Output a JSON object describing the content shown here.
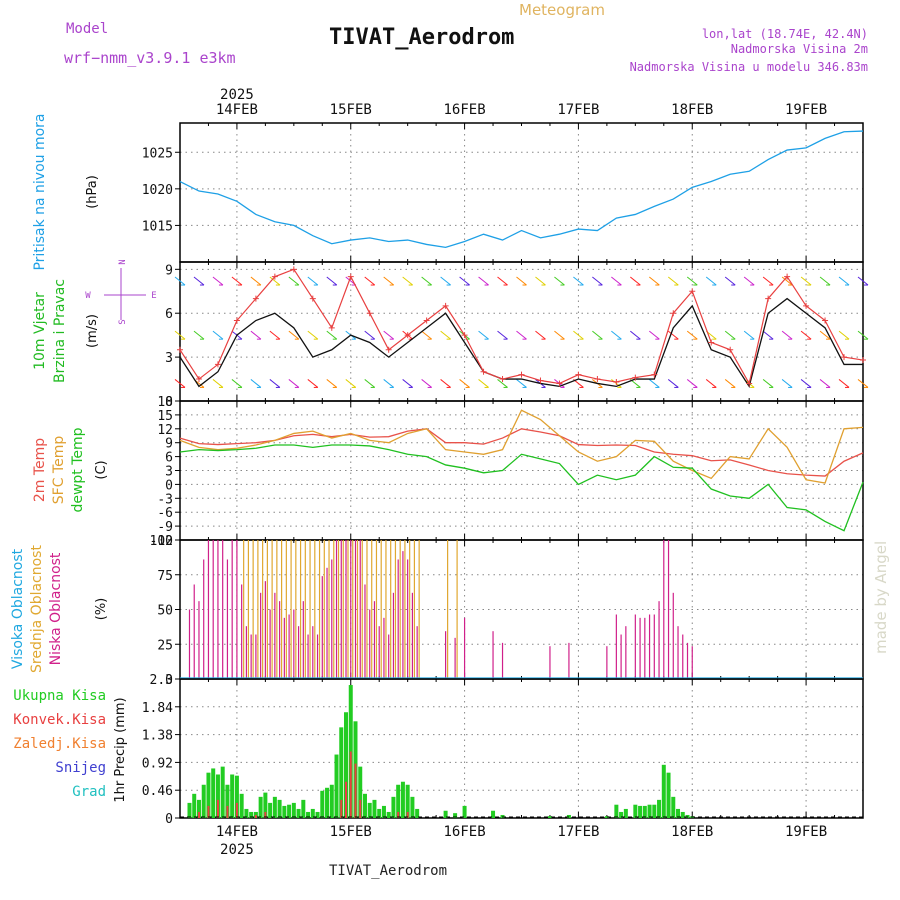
{
  "header": {
    "meteogram_label": "Meteogram",
    "title": "TIVAT_Aerodrom",
    "model_label": "Model",
    "model_value": "wrf−nmm_v3.9.1 e3km",
    "location_line": "lon,lat (18.74E, 42.4N)",
    "elevation_line": "Nadmorska Visina 2m",
    "model_elevation_line": "Nadmorska Visina u modelu 346.83m",
    "footer_title": "TIVAT_Aerodrom",
    "watermark": "made by Angel"
  },
  "colors": {
    "pressure": "#1ea0e6",
    "wind_text": "#22bb22",
    "temp2m": "#e8524a",
    "sfc_temp": "#e0a030",
    "dewpt": "#20c020",
    "high_cloud": "#20a8e0",
    "mid_cloud": "#e0a830",
    "low_cloud": "#d0208a",
    "precip_total": "#22cc22",
    "precip_conv": "#e84040",
    "precip_frozen": "#f08030",
    "snow": "#4040d0",
    "graupel": "#20c0c0",
    "purple": "#aa44cc"
  },
  "chart_data": {
    "type": "line",
    "time_axis": {
      "year_label": "2025",
      "day_labels": [
        "14FEB",
        "15FEB",
        "16FEB",
        "17FEB",
        "18FEB",
        "19FEB"
      ],
      "range_hours": [
        -12,
        132
      ]
    },
    "panels": [
      {
        "id": "pressure",
        "ylabel_main": "Pritisak na nivou mora",
        "unit": "(hPa)",
        "yticks": [
          1015,
          1020,
          1025
        ],
        "ylim": [
          1010,
          1029
        ],
        "series": [
          {
            "name": "MSLP",
            "x": [
              -12,
              -8,
              -4,
              0,
              4,
              8,
              12,
              16,
              20,
              24,
              28,
              32,
              36,
              40,
              44,
              48,
              52,
              56,
              60,
              64,
              68,
              72,
              76,
              80,
              84,
              88,
              92,
              96,
              100,
              104,
              108,
              112,
              116,
              120,
              124,
              128,
              132
            ],
            "values": [
              1021,
              1019.7,
              1019.3,
              1018.3,
              1016.5,
              1015.5,
              1015,
              1013.6,
              1012.5,
              1013,
              1013.3,
              1012.8,
              1013,
              1012.4,
              1012,
              1012.8,
              1013.8,
              1013,
              1014.3,
              1013.3,
              1013.8,
              1014.5,
              1014.3,
              1016,
              1016.5,
              1017.6,
              1018.6,
              1020.2,
              1021,
              1022,
              1022.4,
              1024,
              1025.3,
              1025.6,
              1026.9,
              1027.8,
              1027.9
            ]
          }
        ]
      },
      {
        "id": "wind",
        "ylabel_main": "10m Vjetar",
        "ylabel_sub": "Brzina i Pravac",
        "unit": "(m/s)",
        "compass": {
          "n": "N",
          "s": "S",
          "w": "W",
          "e": "E"
        },
        "yticks": [
          0,
          3,
          6,
          9
        ],
        "ylim": [
          0,
          9.5
        ],
        "series": [
          {
            "name": "Wind speed",
            "x": [
              -12,
              -8,
              -4,
              0,
              4,
              8,
              12,
              16,
              20,
              24,
              28,
              32,
              36,
              40,
              44,
              48,
              52,
              56,
              60,
              64,
              68,
              72,
              76,
              80,
              84,
              88,
              92,
              96,
              100,
              104,
              108,
              112,
              116,
              120,
              124,
              128,
              132
            ],
            "values": [
              3,
              1,
              2,
              4.5,
              5.5,
              6,
              5,
              3,
              3.5,
              4.5,
              4,
              3,
              4,
              5,
              6,
              4,
              2,
              1.5,
              1.5,
              1.2,
              1,
              1.5,
              1.2,
              1,
              1.5,
              1.5,
              5,
              6.5,
              3.5,
              3,
              1,
              6,
              7,
              6,
              5,
              2.5,
              2.5
            ]
          },
          {
            "name": "Wind gust",
            "x": [
              -12,
              -8,
              -4,
              0,
              4,
              8,
              12,
              16,
              20,
              24,
              28,
              32,
              36,
              40,
              44,
              48,
              52,
              56,
              60,
              64,
              68,
              72,
              76,
              80,
              84,
              88,
              92,
              96,
              100,
              104,
              108,
              112,
              116,
              120,
              124,
              128,
              132
            ],
            "values": [
              3.5,
              1.5,
              2.5,
              5.5,
              7,
              8.5,
              9,
              7,
              5,
              8.5,
              6,
              3.5,
              4.5,
              5.5,
              6.5,
              4.5,
              2,
              1.5,
              1.8,
              1.4,
              1.2,
              1.8,
              1.5,
              1.3,
              1.6,
              1.8,
              6,
              7.5,
              4,
              3.5,
              1.2,
              7,
              8.5,
              6.5,
              5.5,
              3,
              2.8
            ]
          }
        ]
      },
      {
        "id": "temperature",
        "ylabel_lines": [
          "2m Temp",
          "SFC Temp",
          "dewpt Temp"
        ],
        "unit": "(C)",
        "yticks": [
          -12,
          -9,
          -6,
          -3,
          0,
          3,
          6,
          9,
          12,
          15,
          18
        ],
        "ylim": [
          -12,
          18
        ],
        "series": [
          {
            "name": "2m Temp",
            "x": [
              -12,
              -8,
              -4,
              0,
              4,
              8,
              12,
              16,
              20,
              24,
              28,
              32,
              36,
              40,
              44,
              48,
              52,
              56,
              60,
              64,
              68,
              72,
              76,
              80,
              84,
              88,
              92,
              96,
              100,
              104,
              108,
              112,
              116,
              120,
              124,
              128,
              132
            ],
            "values": [
              10,
              8.8,
              8.6,
              8.8,
              9,
              9.5,
              10.5,
              10.8,
              10.3,
              10.8,
              10.2,
              10.3,
              11.5,
              12,
              9,
              9,
              8.7,
              10,
              12,
              11.3,
              10.5,
              8.6,
              8.4,
              8.5,
              8.4,
              7,
              6.5,
              6.2,
              5.1,
              5.3,
              4.2,
              3,
              2.3,
              2,
              1.8,
              5,
              6.8
            ]
          },
          {
            "name": "SFC Temp",
            "x": [
              -12,
              -8,
              -4,
              0,
              4,
              8,
              12,
              16,
              20,
              24,
              28,
              32,
              36,
              40,
              44,
              48,
              52,
              56,
              60,
              64,
              68,
              72,
              76,
              80,
              84,
              88,
              92,
              96,
              100,
              104,
              108,
              112,
              116,
              120,
              124,
              128,
              132
            ],
            "values": [
              9.5,
              8,
              7.5,
              7.8,
              8.5,
              9.5,
              11,
              11.5,
              10,
              11,
              9.5,
              9,
              11,
              12,
              7.5,
              7,
              6.5,
              7.5,
              16,
              14,
              10.5,
              7,
              5,
              6,
              9.5,
              9.3,
              5,
              3,
              1.3,
              6,
              5.5,
              12,
              8,
              1,
              0.3,
              12,
              12.3
            ]
          },
          {
            "name": "Dewpoint",
            "x": [
              -12,
              -8,
              -4,
              0,
              4,
              8,
              12,
              16,
              20,
              24,
              28,
              32,
              36,
              40,
              44,
              48,
              52,
              56,
              60,
              64,
              68,
              72,
              76,
              80,
              84,
              88,
              92,
              96,
              100,
              104,
              108,
              112,
              116,
              120,
              124,
              128,
              132
            ],
            "values": [
              7,
              7.5,
              7.3,
              7.5,
              7.8,
              8.5,
              8.5,
              8,
              8.5,
              8.5,
              8.3,
              7.5,
              6.5,
              6,
              4.2,
              3.5,
              2.5,
              3,
              6.5,
              5.5,
              4.5,
              0,
              2,
              1,
              2,
              6,
              3.7,
              3.5,
              -1,
              -2.5,
              -3,
              0,
              -5,
              -5.5,
              -8,
              -10,
              0.5
            ]
          }
        ]
      },
      {
        "id": "clouds",
        "ylabel_lines": [
          "Visoka Oblacnost",
          "Srednja Oblacnost",
          "Niska Oblacnost"
        ],
        "unit": "(%)",
        "yticks": [
          0,
          25,
          50,
          75,
          100
        ],
        "ylim": [
          0,
          100
        ]
      },
      {
        "id": "precip",
        "ylabel": "1hr Precip (mm)",
        "legend": [
          "Ukupna Kisa",
          "Konvek.Kisa",
          "Zaledj.Kisa",
          "Snijeg",
          "Grad"
        ],
        "yticks": [
          0,
          0.46,
          0.92,
          1.38,
          1.84,
          2.3
        ],
        "ylim": [
          0,
          2.3
        ],
        "series": [
          {
            "name": "Total precip",
            "x": [
              -10,
              -9,
              -8,
              -7,
              -6,
              -5,
              -4,
              -3,
              -2,
              -1,
              0,
              1,
              2,
              3,
              4,
              5,
              6,
              7,
              8,
              9,
              10,
              11,
              12,
              13,
              14,
              15,
              16,
              17,
              18,
              19,
              20,
              21,
              22,
              23,
              24,
              25,
              26,
              27,
              28,
              29,
              30,
              31,
              32,
              33,
              34,
              35,
              36,
              37,
              38,
              44,
              46,
              48,
              54,
              56,
              66,
              70,
              78,
              80,
              81,
              82,
              84,
              85,
              86,
              87,
              88,
              89,
              90,
              91,
              92,
              93,
              94,
              95,
              96
            ],
            "values": [
              0.25,
              0.4,
              0.3,
              0.55,
              0.75,
              0.82,
              0.72,
              0.85,
              0.55,
              0.72,
              0.7,
              0.4,
              0.15,
              0.1,
              0.1,
              0.35,
              0.42,
              0.25,
              0.35,
              0.3,
              0.2,
              0.22,
              0.25,
              0.15,
              0.3,
              0.1,
              0.15,
              0.1,
              0.45,
              0.5,
              0.55,
              1.05,
              1.5,
              1.75,
              2.2,
              1.6,
              0.85,
              0.4,
              0.25,
              0.3,
              0.15,
              0.2,
              0.1,
              0.35,
              0.55,
              0.6,
              0.55,
              0.35,
              0.15,
              0.12,
              0.08,
              0.2,
              0.12,
              0.05,
              0.03,
              0.05,
              0.03,
              0.22,
              0.1,
              0.15,
              0.22,
              0.2,
              0.2,
              0.22,
              0.22,
              0.3,
              0.88,
              0.75,
              0.35,
              0.15,
              0.1,
              0.05,
              0.03
            ]
          },
          {
            "name": "Convective",
            "x": [
              -8,
              -6,
              -4,
              -2,
              0,
              4,
              6,
              22,
              23,
              24,
              25,
              26,
              34,
              36
            ],
            "values": [
              0.1,
              0.2,
              0.3,
              0.2,
              0.25,
              0.05,
              0.1,
              0.3,
              0.6,
              1.1,
              0.9,
              0.3,
              0.1,
              0.1
            ]
          }
        ]
      }
    ]
  }
}
